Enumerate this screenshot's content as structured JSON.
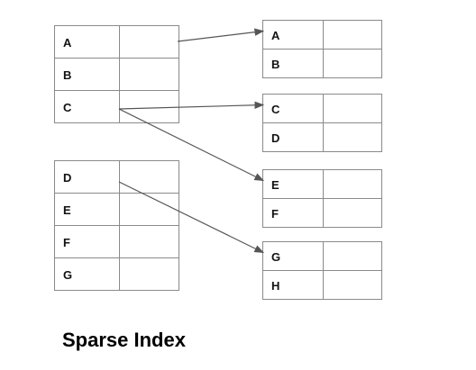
{
  "index_tables": [
    {
      "rows": [
        "A",
        "B",
        "C"
      ]
    },
    {
      "rows": [
        "D",
        "E",
        "F",
        "G"
      ]
    }
  ],
  "data_blocks": [
    {
      "rows": [
        "A",
        "B"
      ]
    },
    {
      "rows": [
        "C",
        "D"
      ]
    },
    {
      "rows": [
        "E",
        "F"
      ]
    },
    {
      "rows": [
        "G",
        "H"
      ]
    }
  ],
  "pointers": [
    {
      "from": "A",
      "to": "A"
    },
    {
      "from": "C",
      "to": "C"
    },
    {
      "from": "C",
      "to": "E"
    },
    {
      "from": "D",
      "to": "G"
    }
  ],
  "caption": "Sparse Index",
  "colors": {
    "border": "#8a8a8a",
    "arrow": "#555555",
    "text": "#111111"
  }
}
